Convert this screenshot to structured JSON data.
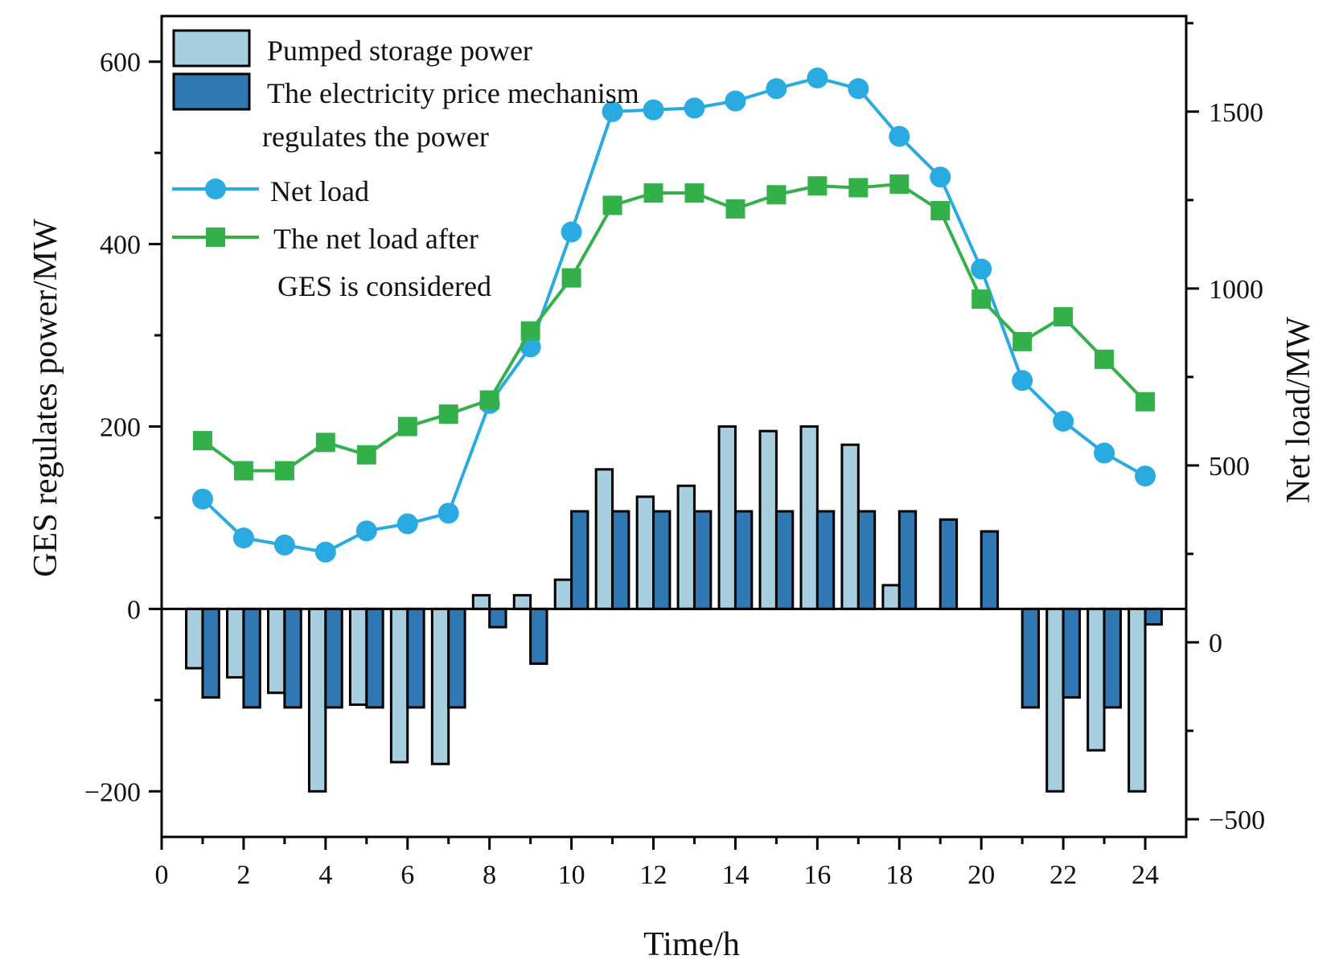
{
  "chart_data": {
    "type": "bar+line",
    "x_label": "Time/h",
    "y_left_label": "GES regulates power/MW",
    "y_right_label": "Net load/MW",
    "x_range": [
      0,
      25
    ],
    "x_ticks": [
      "0",
      "2",
      "4",
      "6",
      "8",
      "10",
      "12",
      "14",
      "16",
      "18",
      "20",
      "22",
      "24"
    ],
    "y_left_range": [
      -250,
      650
    ],
    "y_left_ticks": [
      "−200",
      "0",
      "200",
      "400",
      "600"
    ],
    "y_right_range": [
      -550,
      1770
    ],
    "y_right_ticks": [
      "−500",
      "0",
      "500",
      "1000",
      "1500"
    ],
    "hours": [
      1,
      2,
      3,
      4,
      5,
      6,
      7,
      8,
      9,
      10,
      11,
      12,
      13,
      14,
      15,
      16,
      17,
      18,
      19,
      20,
      21,
      22,
      23,
      24
    ],
    "legend": {
      "pumped": "Pumped storage power",
      "price_line1": "The electricity price mechanism",
      "price_line2": "regulates the power",
      "net_load": "Net load",
      "net_ges_line1": "The net load after",
      "net_ges_line2": "GES is considered"
    },
    "series": [
      {
        "name": "Pumped storage power",
        "kind": "bar",
        "axis": "left",
        "color": "#a8cfe0",
        "values": [
          -65,
          -75,
          -92,
          -200,
          -105,
          -168,
          -170,
          15,
          15,
          32,
          153,
          123,
          135,
          200,
          195,
          200,
          180,
          26,
          0,
          0,
          0,
          -200,
          -155,
          -200
        ]
      },
      {
        "name": "The electricity price mechanism regulates the power",
        "kind": "bar",
        "axis": "left",
        "color": "#2f78b4",
        "values": [
          -97,
          -108,
          -108,
          -108,
          -108,
          -108,
          -108,
          -20,
          -60,
          107,
          107,
          107,
          107,
          107,
          107,
          107,
          107,
          107,
          98,
          85,
          -108,
          -97,
          -108,
          -17
        ]
      },
      {
        "name": "Net load",
        "kind": "line",
        "axis": "right",
        "color": "#29abe2",
        "values": [
          405,
          295,
          275,
          255,
          315,
          335,
          365,
          675,
          835,
          1160,
          1500,
          1505,
          1510,
          1530,
          1565,
          1595,
          1565,
          1430,
          1315,
          1055,
          740,
          625,
          535,
          470
        ]
      },
      {
        "name": "The net load after GES is considered",
        "kind": "line",
        "axis": "right",
        "color": "#34b04a",
        "values": [
          570,
          485,
          485,
          565,
          530,
          610,
          645,
          685,
          880,
          1030,
          1235,
          1270,
          1270,
          1225,
          1265,
          1290,
          1285,
          1295,
          1220,
          970,
          850,
          920,
          800,
          680
        ]
      }
    ]
  }
}
